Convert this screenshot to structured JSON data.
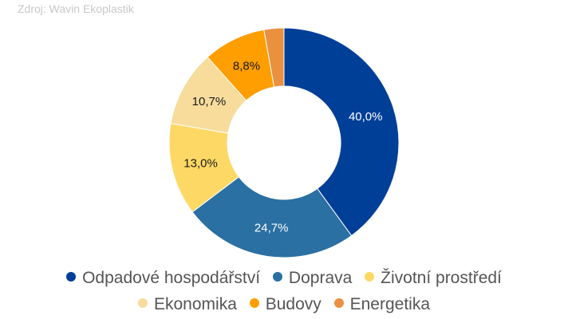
{
  "source": "Zdroj: Wavin Ekoplastik",
  "chart_data": {
    "type": "pie",
    "subtype": "donut",
    "title": "",
    "categories": [
      "Odpadové hospodářství",
      "Doprava",
      "Životní prostředí",
      "Ekonomika",
      "Budovy",
      "Energetika"
    ],
    "values": [
      40.0,
      24.7,
      13.0,
      10.7,
      8.8,
      2.8
    ],
    "labels": [
      "40,0%",
      "24,7%",
      "13,0%",
      "10,7%",
      "8,8%",
      ""
    ],
    "colors": [
      "#003f98",
      "#2a70a3",
      "#fdd864",
      "#f7dc9c",
      "#ff9e00",
      "#e99140"
    ],
    "label_colors": [
      "#ffffff",
      "#ffffff",
      "#1a1a1a",
      "#1a1a1a",
      "#1a1a1a",
      "#1a1a1a"
    ],
    "start_angle_deg": 0,
    "direction": "clockwise",
    "legend_position": "bottom"
  },
  "legend": {
    "row1": [
      {
        "label": "Odpadové hospodářství",
        "color": "#003f98"
      },
      {
        "label": "Doprava",
        "color": "#2a70a3"
      },
      {
        "label": "Životní prostředí",
        "color": "#fdd864"
      }
    ],
    "row2": [
      {
        "label": "Ekonomika",
        "color": "#f7dc9c"
      },
      {
        "label": "Budovy",
        "color": "#ff9e00"
      },
      {
        "label": "Energetika",
        "color": "#e99140"
      }
    ]
  }
}
